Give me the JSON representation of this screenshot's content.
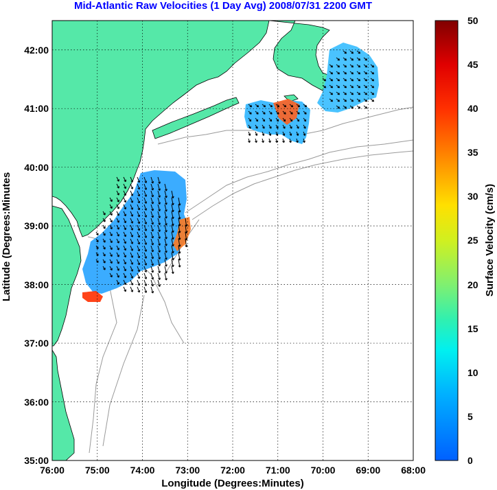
{
  "title": "Mid-Atlantic Raw Velocities (1 Day Avg) 2008/07/31 2200 GMT",
  "xlabel": "Longitude (Degrees:Minutes)",
  "ylabel": "Latitude (Degrees:Minutes",
  "colorbar_label": "Surface Velocity (cm/s)",
  "x_ticks": [
    "76:00",
    "75:00",
    "74:00",
    "73:00",
    "72:00",
    "71:00",
    "70:00",
    "69:00",
    "68:00"
  ],
  "y_ticks": [
    "35:00",
    "36:00",
    "37:00",
    "38:00",
    "39:00",
    "40:00",
    "41:00",
    "42:00"
  ],
  "colorbar_ticks": [
    "0",
    "5",
    "10",
    "15",
    "20",
    "25",
    "30",
    "35",
    "40",
    "45",
    "50"
  ],
  "colors": {
    "land": "#55e8a8",
    "title": "#0000ff",
    "bathymetry": "#999999",
    "grid": "#000000",
    "arrow": "#000000"
  },
  "map_data": {
    "type": "map",
    "projection": "equirectangular",
    "lon_range": [
      -76,
      -68
    ],
    "lat_range": [
      35,
      42.5
    ],
    "colorbar_range": [
      0,
      50
    ],
    "colormap": "jet",
    "grid": true
  }
}
